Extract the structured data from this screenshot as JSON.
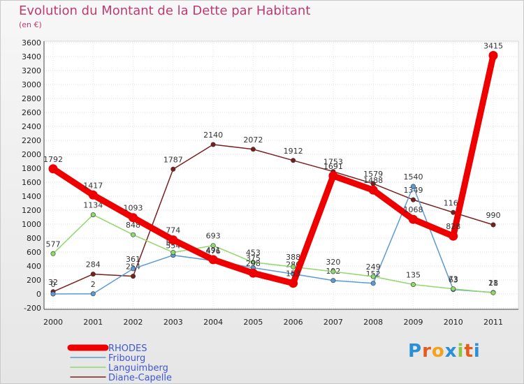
{
  "header": {
    "title": "Evolution du Montant de la Dette par Habitant",
    "subtitle": "(en €)"
  },
  "brand": {
    "logo_letters": [
      "P",
      "r",
      "o",
      "x",
      "i",
      "t",
      "i"
    ],
    "logo_colors": [
      "#2b8fd6",
      "#e85a1b",
      "#f3a21b",
      "#2b8fd6",
      "#8ec63f",
      "#e85a1b",
      "#2b8fd6"
    ]
  },
  "chart_data": {
    "type": "line",
    "title": "Evolution du Montant de la Dette par Habitant",
    "subtitle": "(en €)",
    "x": [
      "2000",
      "2001",
      "2002",
      "2003",
      "2004",
      "2005",
      "2006",
      "2007",
      "2008",
      "2009",
      "2010",
      "2011"
    ],
    "ylim": [
      -200,
      3600
    ],
    "yticks": [
      -200,
      0,
      200,
      400,
      600,
      800,
      1000,
      1200,
      1400,
      1600,
      1800,
      2000,
      2200,
      2400,
      2600,
      2800,
      3000,
      3200,
      3400,
      3600
    ],
    "grid": true,
    "legend_position": "bottom-left",
    "series": [
      {
        "name": "RHODES",
        "color": "#ee0000",
        "values": [
          1792,
          1417,
          1093,
          774,
          491,
          298,
          153,
          1691,
          1488,
          1068,
          828,
          3415
        ]
      },
      {
        "name": "Fribourg",
        "color": "#5a9bd4",
        "values": [
          0,
          2,
          361,
          554,
          476,
          375,
          286,
          192,
          152,
          1540,
          63,
          21
        ]
      },
      {
        "name": "Languimberg",
        "color": "#8fd86b",
        "values": [
          577,
          1134,
          848,
          594,
          693,
          453,
          388,
          320,
          249,
          135,
          73,
          18
        ]
      },
      {
        "name": "Diane-Capelle",
        "color": "#7a1f1f",
        "values": [
          32,
          284,
          254,
          1787,
          2140,
          2072,
          1912,
          1753,
          1579,
          1349,
          1167,
          990
        ]
      }
    ]
  }
}
